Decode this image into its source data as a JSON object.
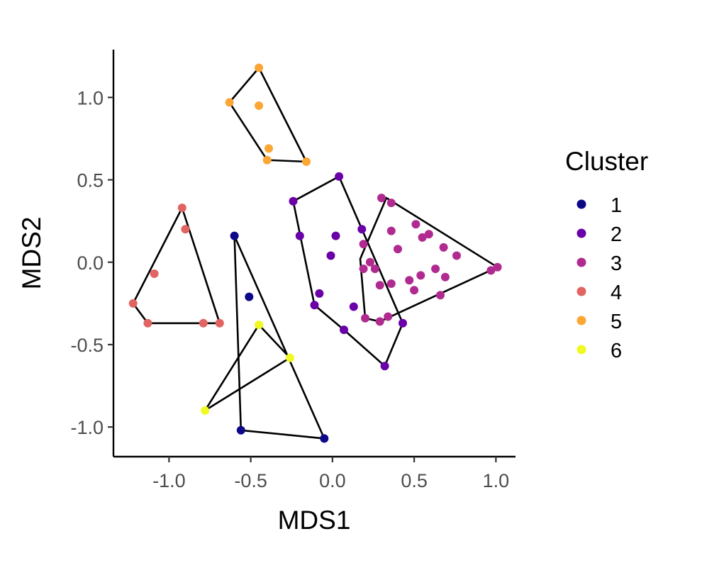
{
  "chart_data": {
    "type": "scatter",
    "xlabel": "MDS1",
    "ylabel": "MDS2",
    "xlim": [
      -1.34,
      1.12
    ],
    "ylim": [
      -1.18,
      1.29
    ],
    "xticks": [
      -1.0,
      -0.5,
      0.0,
      0.5,
      1.0
    ],
    "xtick_labels": [
      "-1.0",
      "-0.5",
      "0.0",
      "0.5",
      "1.0"
    ],
    "yticks": [
      -1.0,
      -0.5,
      0.0,
      0.5,
      1.0
    ],
    "ytick_labels": [
      "-1.0",
      "-0.5",
      "0.0",
      "0.5",
      "1.0"
    ],
    "grid": false,
    "legend": {
      "title": "Cluster",
      "placement": "right"
    },
    "hulls": true,
    "series": [
      {
        "name": "1",
        "color": "#0d0887",
        "points": [
          [
            -0.6,
            0.16
          ],
          [
            -0.51,
            -0.21
          ],
          [
            -0.56,
            -1.02
          ],
          [
            -0.05,
            -1.07
          ]
        ],
        "hull": [
          [
            -0.6,
            0.16
          ],
          [
            -0.56,
            -1.02
          ],
          [
            -0.05,
            -1.07
          ]
        ]
      },
      {
        "name": "2",
        "color": "#6a00a8",
        "points": [
          [
            -0.24,
            0.37
          ],
          [
            0.04,
            0.52
          ],
          [
            -0.2,
            0.16
          ],
          [
            0.02,
            0.16
          ],
          [
            0.18,
            0.2
          ],
          [
            -0.01,
            0.04
          ],
          [
            -0.08,
            -0.19
          ],
          [
            -0.11,
            -0.26
          ],
          [
            0.13,
            -0.27
          ],
          [
            0.07,
            -0.41
          ],
          [
            0.43,
            -0.37
          ],
          [
            0.32,
            -0.63
          ]
        ],
        "hull": [
          [
            -0.24,
            0.37
          ],
          [
            0.04,
            0.52
          ],
          [
            0.43,
            -0.37
          ],
          [
            0.32,
            -0.63
          ],
          [
            0.07,
            -0.41
          ],
          [
            -0.11,
            -0.26
          ]
        ]
      },
      {
        "name": "3",
        "color": "#b12a90",
        "points": [
          [
            0.3,
            0.39
          ],
          [
            0.36,
            0.36
          ],
          [
            0.51,
            0.23
          ],
          [
            0.36,
            0.19
          ],
          [
            0.59,
            0.17
          ],
          [
            0.55,
            0.15
          ],
          [
            0.19,
            0.11
          ],
          [
            0.4,
            0.08
          ],
          [
            0.68,
            0.09
          ],
          [
            0.23,
            0.0
          ],
          [
            0.19,
            -0.04
          ],
          [
            0.26,
            -0.04
          ],
          [
            0.76,
            0.04
          ],
          [
            0.63,
            -0.04
          ],
          [
            0.69,
            -0.09
          ],
          [
            0.54,
            -0.08
          ],
          [
            0.97,
            -0.05
          ],
          [
            1.01,
            -0.03
          ],
          [
            0.36,
            -0.13
          ],
          [
            0.47,
            -0.11
          ],
          [
            0.5,
            -0.17
          ],
          [
            0.29,
            -0.14
          ],
          [
            0.66,
            -0.2
          ],
          [
            0.34,
            -0.33
          ],
          [
            0.2,
            -0.34
          ],
          [
            0.29,
            -0.36
          ]
        ],
        "hull": [
          [
            0.33,
            0.39
          ],
          [
            1.01,
            -0.03
          ],
          [
            0.29,
            -0.36
          ],
          [
            0.2,
            -0.34
          ],
          [
            0.17,
            0.02
          ]
        ]
      },
      {
        "name": "4",
        "color": "#e16462",
        "points": [
          [
            -0.92,
            0.33
          ],
          [
            -0.9,
            0.2
          ],
          [
            -1.09,
            -0.07
          ],
          [
            -1.22,
            -0.25
          ],
          [
            -1.13,
            -0.37
          ],
          [
            -0.79,
            -0.37
          ],
          [
            -0.69,
            -0.37
          ]
        ],
        "hull": [
          [
            -0.92,
            0.33
          ],
          [
            -0.69,
            -0.37
          ],
          [
            -1.13,
            -0.37
          ],
          [
            -1.22,
            -0.25
          ]
        ]
      },
      {
        "name": "5",
        "color": "#fca636",
        "points": [
          [
            -0.45,
            1.18
          ],
          [
            -0.63,
            0.97
          ],
          [
            -0.45,
            0.95
          ],
          [
            -0.39,
            0.69
          ],
          [
            -0.4,
            0.62
          ],
          [
            -0.16,
            0.61
          ]
        ],
        "hull": [
          [
            -0.45,
            1.18
          ],
          [
            -0.16,
            0.61
          ],
          [
            -0.4,
            0.62
          ],
          [
            -0.63,
            0.97
          ]
        ]
      },
      {
        "name": "6",
        "color": "#f0f921",
        "points": [
          [
            -0.45,
            -0.38
          ],
          [
            -0.26,
            -0.58
          ],
          [
            -0.78,
            -0.9
          ]
        ],
        "hull": [
          [
            -0.45,
            -0.38
          ],
          [
            -0.26,
            -0.58
          ],
          [
            -0.78,
            -0.9
          ]
        ]
      }
    ]
  }
}
